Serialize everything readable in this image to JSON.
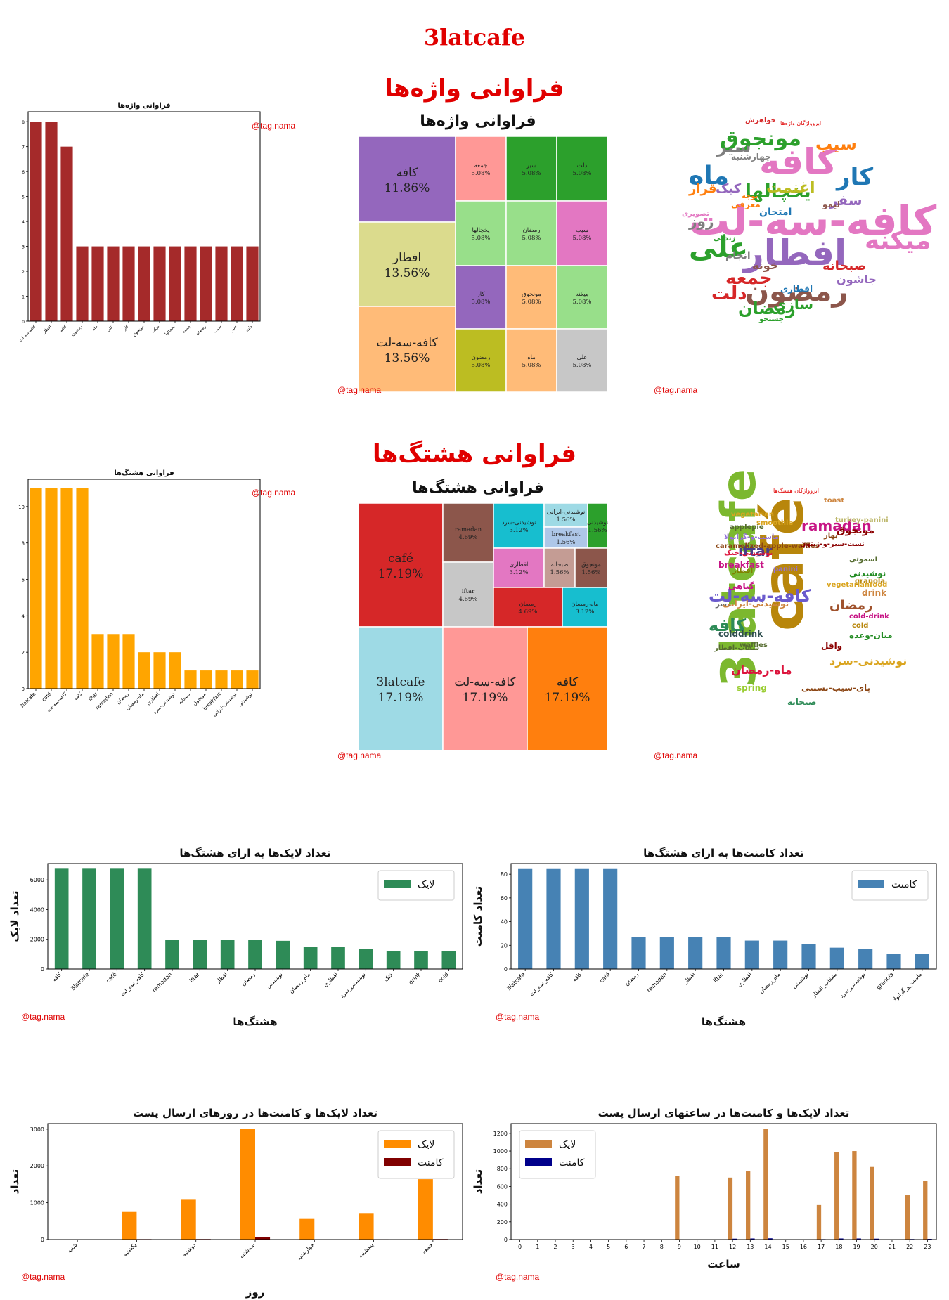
{
  "page_title": "3latcafe",
  "sections": {
    "words_title": "فراوانی واژه‌ها",
    "hashtags_title": "فراوانی هشتگ‌ها"
  },
  "watermark": "@tag.nama",
  "colors": {
    "title_red": "#e00000",
    "word_bar": "#a52a2a",
    "hashtag_bar": "#ffa500",
    "like_green": "#2e8b57",
    "comment_blue": "#4682b4",
    "day_like": "#ff8c00",
    "day_comment": "#800000",
    "hour_like": "#cd853f",
    "hour_comment": "#00008b"
  },
  "word_treemap": {
    "title": "فراوانی واژه‌ها",
    "items": [
      {
        "label": "کافه",
        "value": "11.86%",
        "color": "#9467bd"
      },
      {
        "label": "افطار",
        "value": "13.56%",
        "color": "#dbdb8d"
      },
      {
        "label": "کافه-سه-لت",
        "value": "13.56%",
        "color": "#ffbb78"
      },
      {
        "label": "جمعه",
        "value": "5.08%",
        "color": "#ff9896"
      },
      {
        "label": "سیر",
        "value": "5.08%",
        "color": "#2ca02c"
      },
      {
        "label": "دلت",
        "value": "5.08%",
        "color": "#2ca02c"
      },
      {
        "label": "یخچالها",
        "value": "5.08%",
        "color": "#98df8a"
      },
      {
        "label": "رمضان",
        "value": "5.08%",
        "color": "#98df8a"
      },
      {
        "label": "سیب",
        "value": "5.08%",
        "color": "#e377c2"
      },
      {
        "label": "کار",
        "value": "5.08%",
        "color": "#9467bd"
      },
      {
        "label": "مونجوق",
        "value": "5.08%",
        "color": "#ffbb78"
      },
      {
        "label": "میکنه",
        "value": "5.08%",
        "color": "#98df8a"
      },
      {
        "label": "رمضون",
        "value": "5.08%",
        "color": "#bcbd22"
      },
      {
        "label": "ماه",
        "value": "5.08%",
        "color": "#ffbb78"
      },
      {
        "label": "علی",
        "value": "5.08%",
        "color": "#c7c7c7"
      }
    ]
  },
  "hashtag_treemap": {
    "title": "فراوانی هشتگ‌ها",
    "items": [
      {
        "label": "café",
        "value": "17.19%",
        "color": "#d62728"
      },
      {
        "label": "ramadan",
        "value": "4.69%",
        "color": "#8c564b"
      },
      {
        "label": "نوشیدنی-سرد",
        "value": "3.12%",
        "color": "#17becf"
      },
      {
        "label": "نوشیدنی-ایرانی",
        "value": "1.56%",
        "color": "#9edae5"
      },
      {
        "label": "نوشیدنی",
        "value": "1.56%",
        "color": "#2ca02c"
      },
      {
        "label": "breakfast",
        "value": "1.56%",
        "color": "#aec7e8"
      },
      {
        "label": "iftar",
        "value": "4.69%",
        "color": "#c7c7c7"
      },
      {
        "label": "افطاری",
        "value": "3.12%",
        "color": "#e377c2"
      },
      {
        "label": "صبحانه",
        "value": "1.56%",
        "color": "#c49c94"
      },
      {
        "label": "مونجوق",
        "value": "1.56%",
        "color": "#8c564b"
      },
      {
        "label": "رمضان",
        "value": "4.69%",
        "color": "#d62728"
      },
      {
        "label": "ماه-رمضان",
        "value": "3.12%",
        "color": "#17becf"
      },
      {
        "label": "3latcafe",
        "value": "17.19%",
        "color": "#9edae5"
      },
      {
        "label": "کافه-سه-لت",
        "value": "17.19%",
        "color": "#ff9896"
      },
      {
        "label": "کافه",
        "value": "17.19%",
        "color": "#ff7f0e"
      }
    ]
  },
  "word_cloud": {
    "title": "ابروواژگان واژه‌ها",
    "words": [
      {
        "text": "کافه-سه-لت",
        "color": "#e377c2"
      },
      {
        "text": "کافه",
        "color": "#e377c2"
      },
      {
        "text": "افطار",
        "color": "#9467bd"
      },
      {
        "text": "مونجوق",
        "color": "#2ca02c"
      },
      {
        "text": "ماه",
        "color": "#1f77b4"
      },
      {
        "text": "رمضون",
        "color": "#8c564b"
      },
      {
        "text": "علی",
        "color": "#2ca02c"
      },
      {
        "text": "کار",
        "color": "#1f77b4"
      },
      {
        "text": "یخچالها",
        "color": "#2ca02c"
      },
      {
        "text": "جمعه",
        "color": "#d62728"
      },
      {
        "text": "دلت",
        "color": "#d62728"
      },
      {
        "text": "میکنه",
        "color": "#e377c2"
      },
      {
        "text": "سیب",
        "color": "#ff7f0e"
      },
      {
        "text": "سیر",
        "color": "#7f7f7f"
      },
      {
        "text": "رمضان",
        "color": "#2ca02c"
      },
      {
        "text": "اغنمت",
        "color": "#bcbd22"
      },
      {
        "text": "سازی",
        "color": "#2ca02c"
      },
      {
        "text": "کیک",
        "color": "#9467bd"
      },
      {
        "text": "قرار",
        "color": "#ff7f0e"
      },
      {
        "text": "صبحانه",
        "color": "#d62728"
      },
      {
        "text": "خونه",
        "color": "#8c564b"
      },
      {
        "text": "انجام",
        "color": "#7f7f7f"
      },
      {
        "text": "روز",
        "color": "#7f7f7f"
      },
      {
        "text": "سفر",
        "color": "#9467bd"
      },
      {
        "text": "جاشون",
        "color": "#9467bd"
      },
      {
        "text": "امتحان",
        "color": "#1f77b4"
      },
      {
        "text": "خواهرش",
        "color": "#d62728"
      },
      {
        "text": "افطاری",
        "color": "#1f77b4"
      },
      {
        "text": "لیمو",
        "color": "#8c564b"
      },
      {
        "text": "معرفی",
        "color": "#ff7f0e"
      },
      {
        "text": "توجه",
        "color": "#ff7f0e"
      },
      {
        "text": "چهارشنبه",
        "color": "#7f7f7f"
      },
      {
        "text": "تصویری",
        "color": "#e377c2"
      },
      {
        "text": "زندگی",
        "color": "#2ca02c"
      },
      {
        "text": "جستجو",
        "color": "#2ca02c"
      }
    ]
  },
  "hashtag_cloud": {
    "title": "ابروواژگان هشتگ‌ها",
    "words": [
      {
        "text": "3latcafe",
        "color": "#7cb82f"
      },
      {
        "text": "café",
        "color": "#b8860b"
      },
      {
        "text": "کافه-سه-لت",
        "color": "#6a5acd"
      },
      {
        "text": "کافه",
        "color": "#2e8b57"
      },
      {
        "text": "ramadan",
        "color": "#c71585"
      },
      {
        "text": "iftar",
        "color": "#483d8b"
      },
      {
        "text": "رمضان",
        "color": "#a0522d"
      },
      {
        "text": "نوشیدنی-سرد",
        "color": "#daa520"
      },
      {
        "text": "ماه-رمضان",
        "color": "#dc143c"
      },
      {
        "text": "toast",
        "color": "#cd853f"
      },
      {
        "text": "vegetarian",
        "color": "#daa520"
      },
      {
        "text": "smoothie",
        "color": "#daa520"
      },
      {
        "text": "applepie",
        "color": "#556b2f"
      },
      {
        "text": "ماست-و-گرانولا",
        "color": "#9370db"
      },
      {
        "text": "caramelized-apple-waffles",
        "color": "#8b4513"
      },
      {
        "text": "نوشیدنی-خنک",
        "color": "#dc143c"
      },
      {
        "text": "breakfast",
        "color": "#c71585"
      },
      {
        "text": "افطار",
        "color": "#808000"
      },
      {
        "text": "panini",
        "color": "#9370db"
      },
      {
        "text": "مونجوق",
        "color": "#8b0000"
      },
      {
        "text": "turkey-panini",
        "color": "#bdb76b"
      },
      {
        "text": "نوشیدنی",
        "color": "#228b22"
      },
      {
        "text": "اسموتی",
        "color": "#556b2f"
      },
      {
        "text": "granola",
        "color": "#b8860b"
      },
      {
        "text": "drink",
        "color": "#cd853f"
      },
      {
        "text": "cold-drink",
        "color": "#c71585"
      },
      {
        "text": "cold",
        "color": "#b8860b"
      },
      {
        "text": "colddrink",
        "color": "#2f4f4f"
      },
      {
        "text": "waffles",
        "color": "#556b2f"
      },
      {
        "text": "spring",
        "color": "#9acd32"
      },
      {
        "text": "صبحانه",
        "color": "#2e8b57"
      },
      {
        "text": "پای-سیب-بستنی",
        "color": "#8b4513"
      },
      {
        "text": "بهار",
        "color": "#8b4513"
      },
      {
        "text": "دسر",
        "color": "#696969"
      },
      {
        "text": "واقل",
        "color": "#8b0000"
      },
      {
        "text": "میان-وعده",
        "color": "#228b22"
      },
      {
        "text": "نوشیدنی-ایرانی",
        "color": "#cd853f"
      },
      {
        "text": "vegetarianfood",
        "color": "#daa520"
      },
      {
        "text": "شقاب-افطار",
        "color": "#556b2f"
      },
      {
        "text": "گیاهی",
        "color": "#c71585"
      },
      {
        "text": "نست-سیر-و-زیتون",
        "color": "#8b0000"
      }
    ]
  },
  "chart_data": [
    {
      "type": "bar",
      "title": "فراوانی واژه‌ها",
      "categories": [
        "کافه-سه-لت",
        "افطار",
        "کافه",
        "رمضون",
        "ماه",
        "علی",
        "کار",
        "مونجوق",
        "میکنه",
        "یخچالها",
        "جمعه",
        "رمضان",
        "سیب",
        "سیر",
        "دلت"
      ],
      "values": [
        8,
        8,
        7,
        3,
        3,
        3,
        3,
        3,
        3,
        3,
        3,
        3,
        3,
        3,
        3
      ],
      "xlabel": "",
      "ylabel": "",
      "ylim": [
        0,
        8.4
      ],
      "yticks": [
        0,
        1,
        2,
        3,
        4,
        5,
        6,
        7,
        8
      ],
      "color": "#a52a2a"
    },
    {
      "type": "bar",
      "title": "فراوانی هشتگ‌ها",
      "categories": [
        "3latcafe",
        "café",
        "کافه-سه-لت",
        "کافه",
        "iftar",
        "ramadan",
        "رمضان",
        "ماه-رمضان",
        "افطاری",
        "نوشیدنی-سرد",
        "صبحانه",
        "مونجوق",
        "breakfast",
        "نوشیدنی-ایرانی",
        "نوشیدنی"
      ],
      "values": [
        11,
        11,
        11,
        11,
        3,
        3,
        3,
        2,
        2,
        2,
        1,
        1,
        1,
        1,
        1
      ],
      "xlabel": "",
      "ylabel": "",
      "ylim": [
        0,
        11.5
      ],
      "yticks": [
        0,
        2,
        4,
        6,
        8,
        10
      ],
      "color": "#ffa500"
    },
    {
      "type": "bar",
      "title": "تعداد لایک‌ها به ازای هشتگ‌ها",
      "categories": [
        "کافه",
        "3latcafe",
        "café",
        "کافه_سه_لت",
        "ramadan",
        "iftar",
        "افطار",
        "رمضان",
        "نوشیدنی",
        "ماه_رمضان",
        "افطاری",
        "نوشیدنی_سرد",
        "خنک",
        "drink",
        "cold"
      ],
      "series": [
        {
          "name": "لایک",
          "values": [
            6800,
            6800,
            6800,
            6800,
            1950,
            1950,
            1950,
            1950,
            1900,
            1480,
            1480,
            1350,
            1190,
            1190,
            1190
          ]
        }
      ],
      "xlabel": "هشتگ‌ها",
      "ylabel": "تعداد لایک",
      "ylim": [
        0,
        7100
      ],
      "yticks": [
        0,
        2000,
        4000,
        6000
      ],
      "legend": "top-right",
      "color": "#2e8b57"
    },
    {
      "type": "bar",
      "title": "تعداد کامنت‌ها به ازای هشتگ‌ها",
      "categories": [
        "3latcafe",
        "کافه_سه_لت",
        "کافه",
        "café",
        "رمضان",
        "ramadan",
        "افطار",
        "iftar",
        "افطاری",
        "ماه_رمضان",
        "نوشیدنی",
        "بشقاب_افطار",
        "نوشیدنی_سرد",
        "granola",
        "ماست_و_گرانولا"
      ],
      "series": [
        {
          "name": "کامنت",
          "values": [
            85,
            85,
            85,
            85,
            27,
            27,
            27,
            27,
            24,
            24,
            21,
            18,
            17,
            13,
            13
          ]
        }
      ],
      "xlabel": "هشتگ‌ها",
      "ylabel": "تعداد کامنت",
      "ylim": [
        0,
        89
      ],
      "yticks": [
        0,
        20,
        40,
        60,
        80
      ],
      "legend": "top-right",
      "color": "#4682b4"
    },
    {
      "type": "bar",
      "title": "تعداد لایک‌ها و کامنت‌ها در روزهای ارسال پست",
      "categories": [
        "شنبه",
        "یکشنبه",
        "دوشنبه",
        "سه‌شنبه",
        "چهارشنبه",
        "پنجشنبه",
        "جمعه"
      ],
      "series": [
        {
          "name": "لایک",
          "values": [
            0,
            750,
            1100,
            3000,
            560,
            720,
            1640
          ]
        },
        {
          "name": "کامنت",
          "values": [
            0,
            12,
            14,
            60,
            8,
            10,
            15
          ]
        }
      ],
      "xlabel": "روز",
      "ylabel": "تعداد",
      "ylim": [
        0,
        3150
      ],
      "yticks": [
        0,
        1000,
        2000,
        3000
      ],
      "legend": "top-right",
      "colors": [
        "#ff8c00",
        "#800000"
      ]
    },
    {
      "type": "bar",
      "title": "تعداد لایک‌ها و کامنت‌ها در ساعتهای ارسال پست",
      "categories": [
        "0",
        "1",
        "2",
        "3",
        "4",
        "5",
        "6",
        "7",
        "8",
        "9",
        "10",
        "11",
        "12",
        "13",
        "14",
        "15",
        "16",
        "17",
        "18",
        "19",
        "20",
        "21",
        "22",
        "23"
      ],
      "series": [
        {
          "name": "لایک",
          "values": [
            0,
            0,
            0,
            0,
            0,
            0,
            0,
            0,
            0,
            720,
            0,
            0,
            700,
            770,
            1250,
            0,
            0,
            390,
            990,
            1000,
            820,
            0,
            500,
            660
          ]
        },
        {
          "name": "کامنت",
          "values": [
            0,
            0,
            0,
            0,
            0,
            0,
            0,
            0,
            0,
            4,
            0,
            0,
            10,
            12,
            14,
            0,
            0,
            5,
            12,
            12,
            10,
            0,
            6,
            8
          ]
        }
      ],
      "xlabel": "ساعت",
      "ylabel": "تعداد",
      "ylim": [
        0,
        1310
      ],
      "yticks": [
        0,
        200,
        400,
        600,
        800,
        1000,
        1200
      ],
      "legend": "top-left",
      "colors": [
        "#cd853f",
        "#00008b"
      ]
    }
  ]
}
